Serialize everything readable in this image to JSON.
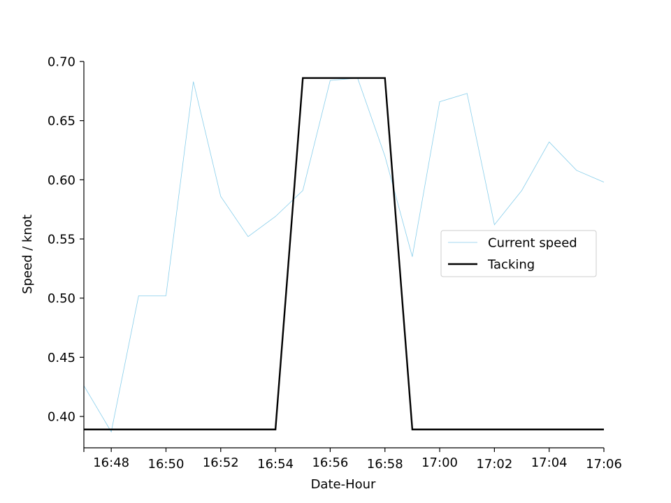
{
  "chart_data": {
    "type": "line",
    "title": "",
    "xlabel": "Date-Hour",
    "ylabel": "Speed / knot",
    "x": [
      "16:47",
      "16:48",
      "16:49",
      "16:50",
      "16:51",
      "16:52",
      "16:53",
      "16:54",
      "16:55",
      "16:56",
      "16:57",
      "16:58",
      "16:59",
      "17:00",
      "17:01",
      "17:02",
      "17:03",
      "17:04",
      "17:05",
      "17:06"
    ],
    "x_tick_labels": [
      "16:48",
      "16:50",
      "16:52",
      "16:54",
      "16:56",
      "16:58",
      "17:00",
      "17:02",
      "17:04",
      "17:06"
    ],
    "xlim": [
      "16:47",
      "17:06"
    ],
    "y_ticks": [
      "0.40",
      "0.45",
      "0.50",
      "0.55",
      "0.60",
      "0.65",
      "0.70"
    ],
    "ylim": [
      0.3735,
      0.7
    ],
    "grid": false,
    "legend_position": "center-right",
    "series": [
      {
        "name": "Current speed",
        "color": "#87ceeb",
        "values": [
          0.426,
          0.387,
          0.502,
          0.502,
          0.683,
          0.586,
          0.552,
          0.569,
          0.591,
          0.684,
          0.686,
          0.62,
          0.535,
          0.666,
          0.673,
          0.562,
          0.591,
          0.632,
          0.608,
          0.598
        ]
      },
      {
        "name": "Tacking",
        "color": "#000000",
        "values": [
          0.389,
          0.389,
          0.389,
          0.389,
          0.389,
          0.389,
          0.389,
          0.389,
          0.686,
          0.686,
          0.686,
          0.686,
          0.389,
          0.389,
          0.389,
          0.389,
          0.389,
          0.389,
          0.389,
          0.389
        ]
      }
    ]
  }
}
